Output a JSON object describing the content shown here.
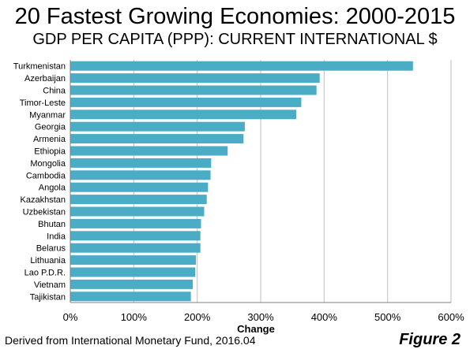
{
  "header": {
    "title": "20 Fastest Growing Economies: 2000-2015",
    "subtitle": "GDP PER CAPITA (PPP): CURRENT INTERNATIONAL $"
  },
  "footer": {
    "source": "Derived from International Monetary Fund, 2016.04",
    "figure_label": "Figure 2"
  },
  "chart_data": {
    "type": "bar",
    "orientation": "horizontal",
    "title": "20 Fastest Growing Economies: 2000-2015",
    "subtitle": "GDP PER CAPITA (PPP): CURRENT INTERNATIONAL $",
    "xlabel": "Change",
    "ylabel": "",
    "xlim": [
      0,
      600
    ],
    "x_unit": "%",
    "x_ticks": [
      0,
      100,
      200,
      300,
      400,
      500,
      600
    ],
    "x_tick_labels": [
      "0%",
      "100%",
      "200%",
      "300%",
      "400%",
      "500%",
      "600%"
    ],
    "grid": "vertical",
    "legend": "none",
    "bar_color": "#4BACC6",
    "categories": [
      "Turkmenistan",
      "Azerbaijan",
      "China",
      "Timor-Leste",
      "Myanmar",
      "Georgia",
      "Armenia",
      "Ethiopia",
      "Mongolia",
      "Cambodia",
      "Angola",
      "Kazakhstan",
      "Uzbekistan",
      "Bhutan",
      "India",
      "Belarus",
      "Lithuania",
      "Lao P.D.R.",
      "Vietnam",
      "Tajikistan"
    ],
    "values": [
      540,
      393,
      388,
      364,
      356,
      275,
      273,
      248,
      222,
      221,
      217,
      215,
      211,
      206,
      205,
      205,
      198,
      197,
      193,
      190
    ]
  }
}
